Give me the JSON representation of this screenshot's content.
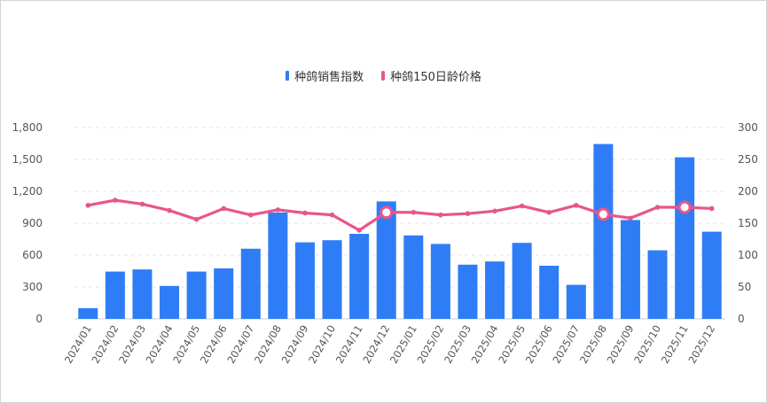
{
  "colors": {
    "bar": "#2f7df6",
    "line": "#e8558c",
    "grid": "#e6e6e6"
  },
  "legend": {
    "bar_label": "种鸽销售指数",
    "line_label": "种鸽150日龄价格"
  },
  "chart_data": {
    "type": "bar",
    "categories": [
      "2024/01",
      "2024/02",
      "2024/03",
      "2024/04",
      "2024/05",
      "2024/06",
      "2024/07",
      "2024/08",
      "2024/09",
      "2024/10",
      "2024/11",
      "2024/12",
      "2025/01",
      "2025/02",
      "2025/03",
      "2025/04",
      "2025/05",
      "2025/06",
      "2025/07",
      "2025/08",
      "2025/09",
      "2025/10",
      "2025/11",
      "2025/12"
    ],
    "series": [
      {
        "name": "种鸽销售指数",
        "type": "bar",
        "axis": "left",
        "values": [
          100,
          445,
          465,
          310,
          445,
          475,
          660,
          1000,
          720,
          740,
          800,
          1105,
          785,
          705,
          510,
          540,
          715,
          500,
          320,
          1645,
          930,
          645,
          1520,
          820
        ]
      },
      {
        "name": "种鸽150日龄价格",
        "type": "line",
        "axis": "right",
        "values": [
          178,
          186,
          180,
          170,
          156,
          173,
          163,
          171,
          166,
          163,
          139,
          167,
          167,
          163,
          165,
          169,
          177,
          167,
          178,
          164,
          158,
          175,
          175,
          173
        ],
        "highlighted": [
          11,
          19,
          22
        ]
      }
    ],
    "y_left": {
      "ylim": [
        0,
        1800
      ],
      "ticks": [
        "0",
        "300",
        "600",
        "900",
        "1,200",
        "1,500",
        "1,800"
      ]
    },
    "y_right": {
      "ylim": [
        0,
        300
      ],
      "ticks": [
        "0",
        "50",
        "100",
        "150",
        "200",
        "250",
        "300"
      ]
    },
    "grid": true,
    "legend_position": "top-center"
  }
}
